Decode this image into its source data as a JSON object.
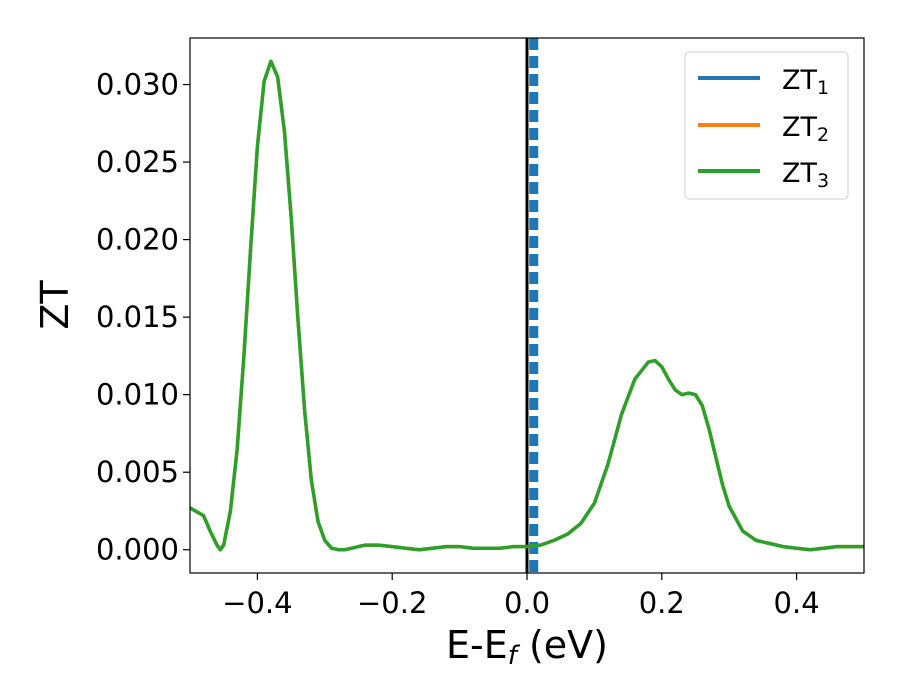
{
  "chart_data": {
    "type": "line",
    "title": "",
    "xlabel": {
      "main": "E-E",
      "sub": "f",
      "tail": " (eV)"
    },
    "ylabel": "ZT",
    "xlim": [
      -0.5,
      0.5
    ],
    "ylim": [
      -0.0015,
      0.033
    ],
    "x_ticks": [
      -0.4,
      -0.2,
      0.0,
      0.2,
      0.4
    ],
    "x_tick_labels": [
      "−0.4",
      "−0.2",
      "0.0",
      "0.2",
      "0.4"
    ],
    "y_ticks": [
      0.0,
      0.005,
      0.01,
      0.015,
      0.02,
      0.025,
      0.03
    ],
    "y_tick_labels": [
      "0.000",
      "0.005",
      "0.010",
      "0.015",
      "0.020",
      "0.025",
      "0.030"
    ],
    "grid": false,
    "legend": {
      "position": "top-right"
    },
    "fermi_level": {
      "x": 0.0,
      "color": "#000000"
    },
    "dashed_line": {
      "x": 0.01,
      "color": "#1f77b4"
    },
    "series": [
      {
        "name": {
          "main": "ZT",
          "sub": "1"
        },
        "color": "#1f77b4",
        "x": [],
        "y": []
      },
      {
        "name": {
          "main": "ZT",
          "sub": "2"
        },
        "color": "#ff7f0e",
        "x": [
          -0.5,
          -0.48,
          -0.47,
          -0.46,
          -0.455,
          -0.45,
          -0.44,
          -0.43,
          -0.42,
          -0.41,
          -0.4,
          -0.39,
          -0.38,
          -0.37,
          -0.36,
          -0.35,
          -0.34,
          -0.33,
          -0.32,
          -0.31,
          -0.3,
          -0.29,
          -0.28,
          -0.27,
          -0.26,
          -0.25,
          -0.24,
          -0.22,
          -0.2,
          -0.18,
          -0.16,
          -0.14,
          -0.12,
          -0.1,
          -0.08,
          -0.06,
          -0.04,
          -0.02,
          0.0,
          0.02,
          0.04,
          0.06,
          0.08,
          0.1,
          0.12,
          0.14,
          0.16,
          0.18,
          0.19,
          0.2,
          0.21,
          0.22,
          0.23,
          0.24,
          0.25,
          0.26,
          0.27,
          0.28,
          0.29,
          0.3,
          0.32,
          0.34,
          0.36,
          0.38,
          0.4,
          0.42,
          0.44,
          0.46,
          0.48,
          0.5
        ],
        "y": [
          0.0027,
          0.0022,
          0.0012,
          0.0003,
          0.0,
          0.0003,
          0.0025,
          0.0065,
          0.0125,
          0.0195,
          0.026,
          0.0302,
          0.0315,
          0.0305,
          0.027,
          0.0215,
          0.015,
          0.009,
          0.0045,
          0.0018,
          0.0006,
          0.0001,
          0.0,
          0.0,
          0.0001,
          0.0002,
          0.0003,
          0.0003,
          0.0002,
          0.0001,
          0.0,
          0.0001,
          0.0002,
          0.0002,
          0.0001,
          0.0001,
          0.0001,
          0.0002,
          0.0002,
          0.0003,
          0.0006,
          0.001,
          0.0017,
          0.003,
          0.0055,
          0.0087,
          0.011,
          0.0121,
          0.0122,
          0.0118,
          0.011,
          0.0103,
          0.01,
          0.0101,
          0.01,
          0.0093,
          0.0078,
          0.006,
          0.0042,
          0.0028,
          0.0012,
          0.0006,
          0.0004,
          0.0002,
          0.0001,
          0.0,
          0.0001,
          0.0002,
          0.0002,
          0.0002
        ]
      },
      {
        "name": {
          "main": "ZT",
          "sub": "3"
        },
        "color": "#2ca02c",
        "x": [
          -0.5,
          -0.48,
          -0.47,
          -0.46,
          -0.455,
          -0.45,
          -0.44,
          -0.43,
          -0.42,
          -0.41,
          -0.4,
          -0.39,
          -0.38,
          -0.37,
          -0.36,
          -0.35,
          -0.34,
          -0.33,
          -0.32,
          -0.31,
          -0.3,
          -0.29,
          -0.28,
          -0.27,
          -0.26,
          -0.25,
          -0.24,
          -0.22,
          -0.2,
          -0.18,
          -0.16,
          -0.14,
          -0.12,
          -0.1,
          -0.08,
          -0.06,
          -0.04,
          -0.02,
          0.0,
          0.02,
          0.04,
          0.06,
          0.08,
          0.1,
          0.12,
          0.14,
          0.16,
          0.18,
          0.19,
          0.2,
          0.21,
          0.22,
          0.23,
          0.24,
          0.25,
          0.26,
          0.27,
          0.28,
          0.29,
          0.3,
          0.32,
          0.34,
          0.36,
          0.38,
          0.4,
          0.42,
          0.44,
          0.46,
          0.48,
          0.5
        ],
        "y": [
          0.0027,
          0.0022,
          0.0012,
          0.0003,
          0.0,
          0.0003,
          0.0025,
          0.0065,
          0.0125,
          0.0195,
          0.026,
          0.0302,
          0.0315,
          0.0305,
          0.027,
          0.0215,
          0.015,
          0.009,
          0.0045,
          0.0018,
          0.0006,
          0.0001,
          0.0,
          0.0,
          0.0001,
          0.0002,
          0.0003,
          0.0003,
          0.0002,
          0.0001,
          0.0,
          0.0001,
          0.0002,
          0.0002,
          0.0001,
          0.0001,
          0.0001,
          0.0002,
          0.0002,
          0.0003,
          0.0006,
          0.001,
          0.0017,
          0.003,
          0.0055,
          0.0087,
          0.011,
          0.0121,
          0.0122,
          0.0118,
          0.011,
          0.0103,
          0.01,
          0.0101,
          0.01,
          0.0093,
          0.0078,
          0.006,
          0.0042,
          0.0028,
          0.0012,
          0.0006,
          0.0004,
          0.0002,
          0.0001,
          0.0,
          0.0001,
          0.0002,
          0.0002,
          0.0002
        ]
      }
    ]
  }
}
